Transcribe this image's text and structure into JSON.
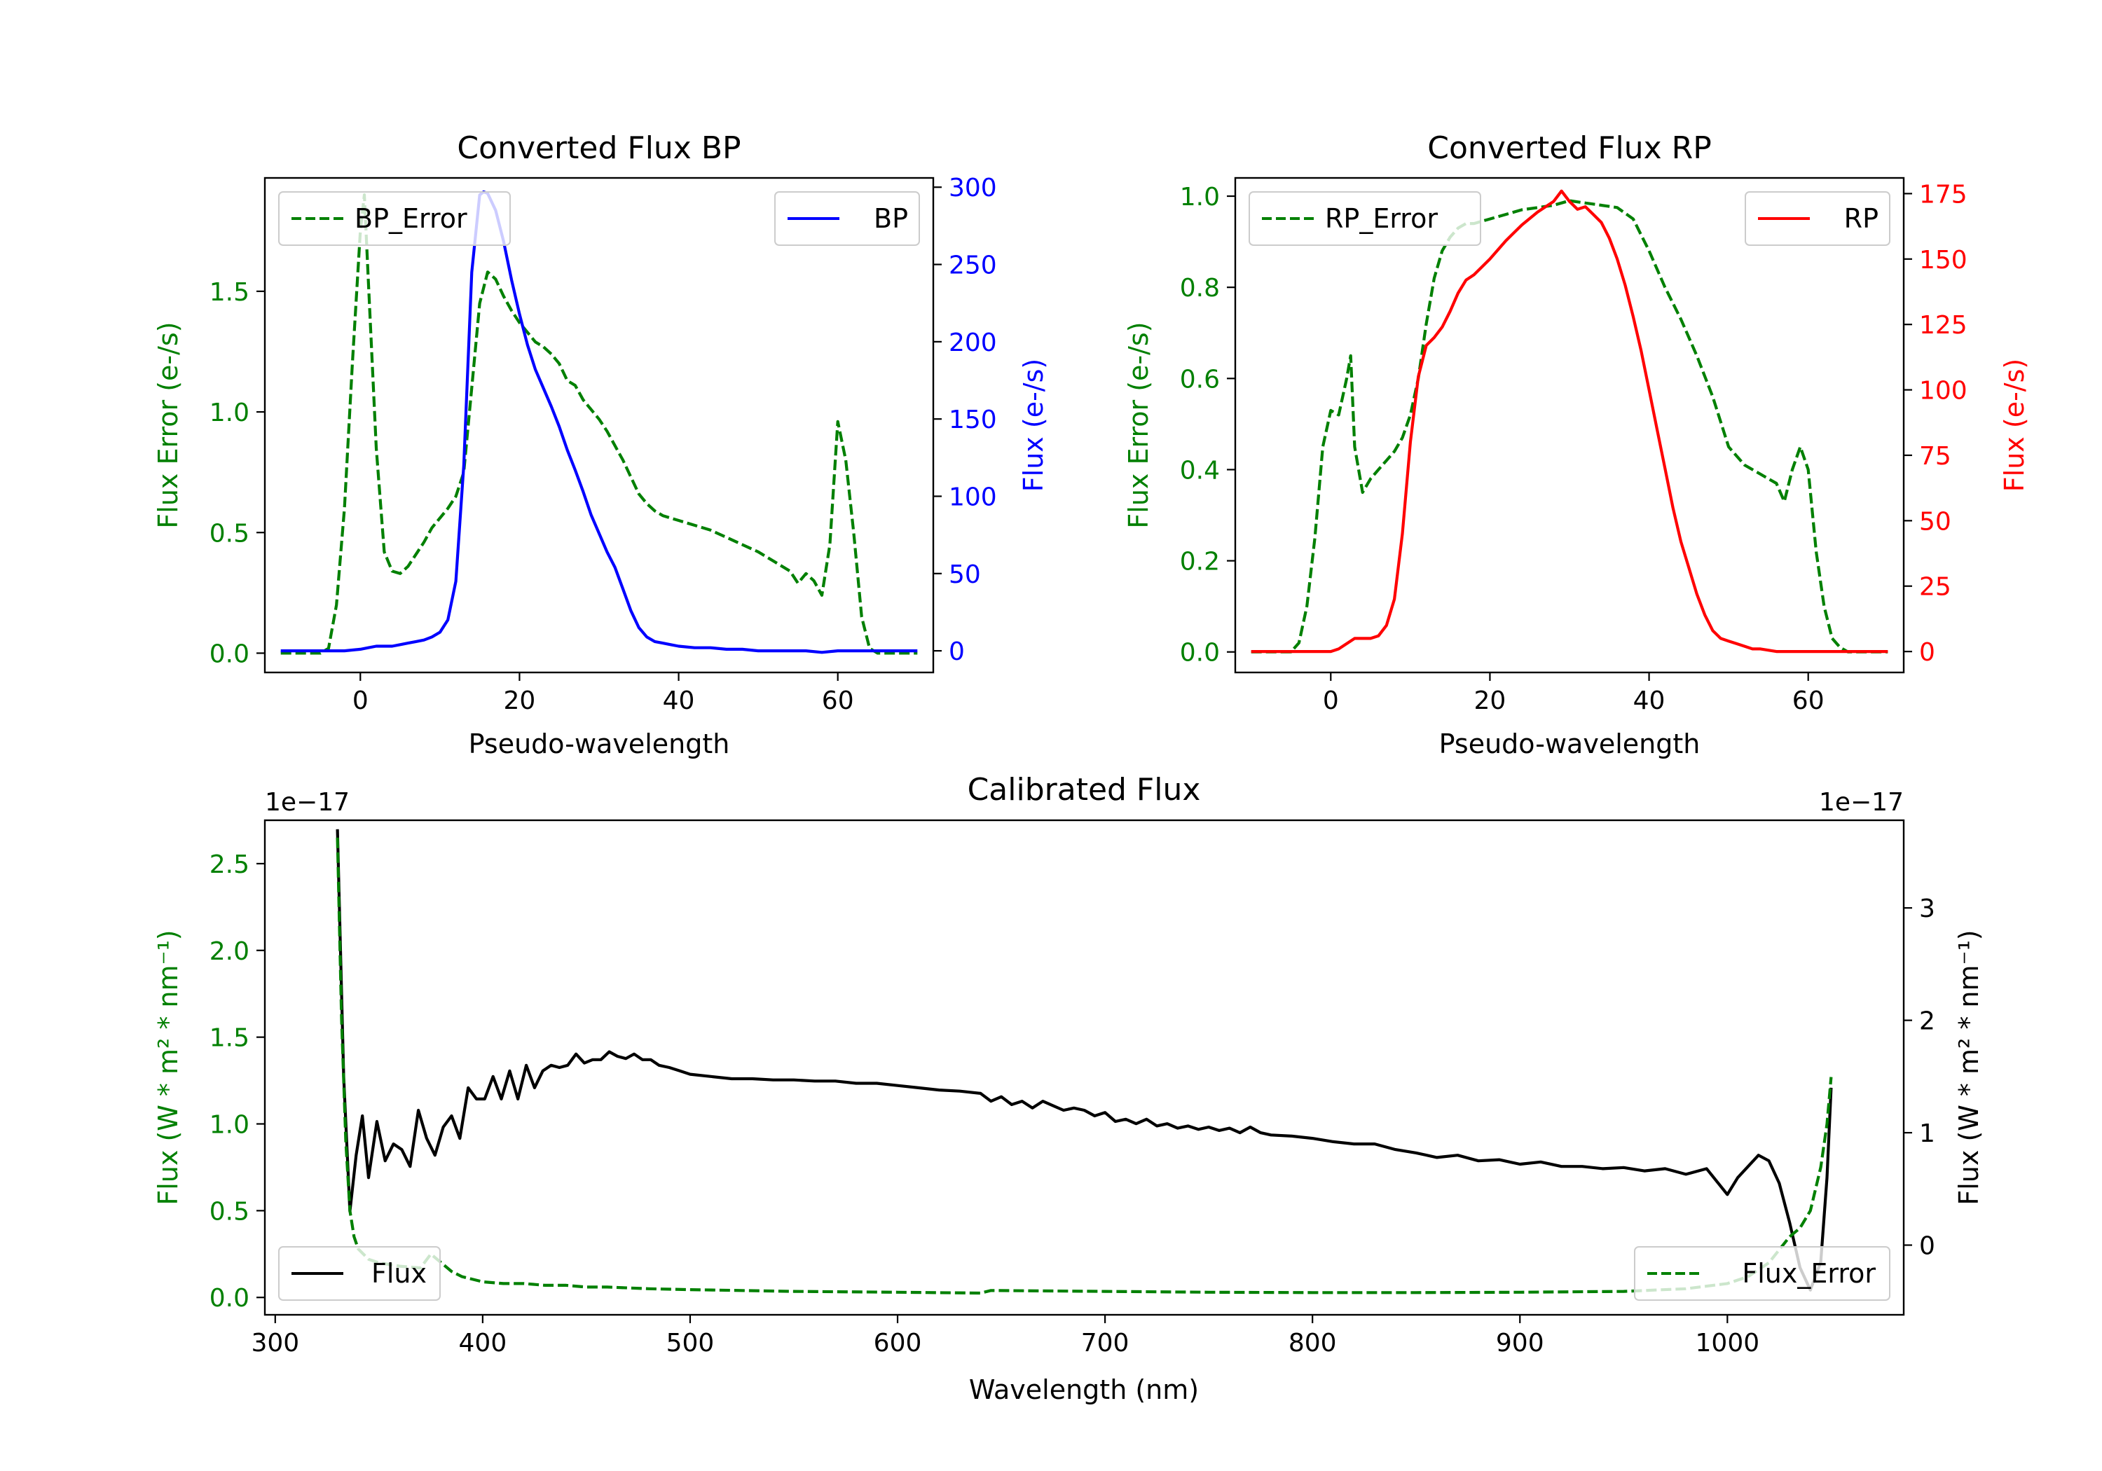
{
  "chart_data": [
    {
      "id": "bp",
      "type": "line",
      "title": "Converted Flux BP",
      "xlabel": "Pseudo-wavelength",
      "xlim": [
        -12,
        72
      ],
      "xticks": [
        0,
        20,
        40,
        60
      ],
      "left_axis": {
        "label": "Flux Error (e-/s)",
        "color": "#008000",
        "ylim": [
          -0.08,
          1.97
        ],
        "ticks": [
          0.0,
          0.5,
          1.0,
          1.5
        ],
        "tick_labels": [
          "0.0",
          "0.5",
          "1.0",
          "1.5"
        ]
      },
      "right_axis": {
        "label": "Flux (e-/s)",
        "color": "#0000ff",
        "ylim": [
          -14,
          306
        ],
        "ticks": [
          0,
          50,
          100,
          150,
          200,
          250,
          300
        ],
        "tick_labels": [
          "0",
          "50",
          "100",
          "150",
          "200",
          "250",
          "300"
        ]
      },
      "series": [
        {
          "name": "BP_Error",
          "axis": "left",
          "color": "#008000",
          "dash": true,
          "legend": "upper left",
          "x": [
            -10,
            -7,
            -5,
            -4,
            -3,
            -2,
            -1,
            0,
            0.5,
            1,
            2,
            3,
            4,
            5,
            6,
            7,
            8,
            9,
            10,
            11,
            12,
            13,
            14,
            15,
            16,
            17,
            18,
            19,
            20,
            21,
            22,
            23,
            24,
            25,
            26,
            27,
            28,
            29,
            30,
            31,
            32,
            33,
            34,
            35,
            36,
            37,
            38,
            39,
            40,
            42,
            44,
            46,
            48,
            50,
            52,
            54,
            55,
            56,
            57,
            58,
            59,
            60,
            61,
            62,
            63,
            64,
            65,
            66,
            67,
            68,
            69,
            70
          ],
          "values": [
            0,
            0,
            0,
            0.02,
            0.2,
            0.6,
            1.2,
            1.75,
            1.9,
            1.55,
            0.85,
            0.42,
            0.34,
            0.33,
            0.36,
            0.41,
            0.46,
            0.52,
            0.56,
            0.6,
            0.65,
            0.75,
            1.1,
            1.45,
            1.58,
            1.55,
            1.48,
            1.42,
            1.37,
            1.33,
            1.29,
            1.27,
            1.24,
            1.2,
            1.13,
            1.11,
            1.05,
            1.01,
            0.97,
            0.92,
            0.86,
            0.8,
            0.73,
            0.66,
            0.62,
            0.59,
            0.57,
            0.56,
            0.55,
            0.53,
            0.51,
            0.48,
            0.45,
            0.42,
            0.38,
            0.34,
            0.29,
            0.33,
            0.3,
            0.24,
            0.45,
            0.96,
            0.8,
            0.5,
            0.15,
            0.02,
            0,
            0,
            0,
            0,
            0,
            0
          ]
        },
        {
          "name": "BP",
          "axis": "right",
          "color": "#0000ff",
          "dash": false,
          "legend": "upper right",
          "x": [
            -10,
            -5,
            -2,
            0,
            1,
            2,
            3,
            4,
            5,
            6,
            7,
            8,
            9,
            10,
            11,
            12,
            13,
            14,
            15,
            15.5,
            16,
            17,
            18,
            19,
            20,
            21,
            22,
            23,
            24,
            25,
            26,
            27,
            28,
            29,
            30,
            31,
            32,
            33,
            34,
            35,
            36,
            37,
            38,
            39,
            40,
            42,
            44,
            46,
            48,
            50,
            52,
            54,
            56,
            58,
            60,
            62,
            64,
            66,
            68,
            70
          ],
          "values": [
            0,
            0,
            0,
            1,
            2,
            3,
            3,
            3,
            4,
            5,
            6,
            7,
            9,
            12,
            20,
            45,
            120,
            245,
            295,
            297,
            296,
            285,
            265,
            240,
            218,
            198,
            182,
            170,
            158,
            145,
            130,
            117,
            103,
            88,
            76,
            64,
            54,
            40,
            26,
            15,
            9,
            6,
            5,
            4,
            3,
            2,
            2,
            1,
            1,
            0,
            0,
            0,
            0,
            -1,
            0,
            0,
            0,
            0,
            0,
            0
          ]
        }
      ]
    },
    {
      "id": "rp",
      "type": "line",
      "title": "Converted Flux RP",
      "xlabel": "Pseudo-wavelength",
      "xlim": [
        -12,
        72
      ],
      "xticks": [
        0,
        20,
        40,
        60
      ],
      "left_axis": {
        "label": "Flux Error (e-/s)",
        "color": "#008000",
        "ylim": [
          -0.045,
          1.04
        ],
        "ticks": [
          0.0,
          0.2,
          0.4,
          0.6,
          0.8,
          1.0
        ],
        "tick_labels": [
          "0.0",
          "0.2",
          "0.4",
          "0.6",
          "0.8",
          "1.0"
        ]
      },
      "right_axis": {
        "label": "Flux (e-/s)",
        "color": "#ff0000",
        "ylim": [
          -8,
          181
        ],
        "ticks": [
          0,
          25,
          50,
          75,
          100,
          125,
          150,
          175
        ],
        "tick_labels": [
          "0",
          "25",
          "50",
          "75",
          "100",
          "125",
          "150",
          "175"
        ]
      },
      "series": [
        {
          "name": "RP_Error",
          "axis": "left",
          "color": "#008000",
          "dash": true,
          "legend": "upper left",
          "x": [
            -10,
            -5,
            -4,
            -3,
            -2,
            -1,
            0,
            1,
            2,
            2.5,
            3,
            4,
            5,
            6,
            7,
            8,
            9,
            10,
            11,
            12,
            13,
            14,
            15,
            16,
            17,
            18,
            20,
            22,
            24,
            26,
            28,
            30,
            32,
            34,
            36,
            38,
            40,
            42,
            44,
            46,
            48,
            50,
            52,
            54,
            55,
            56,
            57,
            58,
            59,
            60,
            61,
            62,
            63,
            64,
            65,
            70
          ],
          "values": [
            0,
            0,
            0.02,
            0.1,
            0.25,
            0.45,
            0.53,
            0.52,
            0.6,
            0.65,
            0.45,
            0.35,
            0.38,
            0.4,
            0.42,
            0.44,
            0.47,
            0.52,
            0.6,
            0.72,
            0.82,
            0.88,
            0.91,
            0.93,
            0.94,
            0.94,
            0.95,
            0.96,
            0.97,
            0.975,
            0.98,
            0.99,
            0.985,
            0.98,
            0.975,
            0.95,
            0.88,
            0.8,
            0.73,
            0.65,
            0.56,
            0.45,
            0.41,
            0.39,
            0.38,
            0.37,
            0.33,
            0.4,
            0.45,
            0.4,
            0.22,
            0.1,
            0.03,
            0.01,
            0,
            0
          ]
        },
        {
          "name": "RP",
          "axis": "right",
          "color": "#ff0000",
          "dash": false,
          "legend": "upper right",
          "x": [
            -10,
            -5,
            -1,
            0,
            1,
            2,
            3,
            4,
            5,
            6,
            7,
            8,
            9,
            10,
            11,
            12,
            13,
            14,
            15,
            16,
            17,
            18,
            20,
            22,
            24,
            26,
            28,
            29,
            30,
            31,
            32,
            33,
            34,
            35,
            36,
            37,
            38,
            39,
            40,
            41,
            42,
            43,
            44,
            45,
            46,
            47,
            48,
            49,
            50,
            51,
            52,
            53,
            54,
            56,
            58,
            60,
            62,
            65,
            70
          ],
          "values": [
            0,
            0,
            0,
            0,
            1,
            3,
            5,
            5,
            5,
            6,
            10,
            20,
            45,
            80,
            105,
            117,
            120,
            124,
            130,
            137,
            142,
            144,
            150,
            157,
            163,
            168,
            172,
            176,
            172,
            169,
            170,
            167,
            164,
            158,
            150,
            140,
            128,
            115,
            100,
            85,
            70,
            55,
            42,
            32,
            22,
            14,
            8,
            5,
            4,
            3,
            2,
            1,
            1,
            0,
            0,
            0,
            0,
            0,
            0
          ]
        }
      ]
    },
    {
      "id": "cal",
      "type": "line",
      "title": "Calibrated Flux",
      "xlabel": "Wavelength (nm)",
      "xlim": [
        295,
        1085
      ],
      "xticks": [
        300,
        400,
        500,
        600,
        700,
        800,
        900,
        1000
      ],
      "left_axis": {
        "label": "Flux (W * m² * nm⁻¹)",
        "color": "#008000",
        "ylim": [
          -0.1,
          2.75
        ],
        "ticks": [
          0.0,
          0.5,
          1.0,
          1.5,
          2.0,
          2.5
        ],
        "tick_labels": [
          "0.0",
          "0.5",
          "1.0",
          "1.5",
          "2.0",
          "2.5"
        ],
        "offset_text": "1e−17"
      },
      "right_axis": {
        "label": "Flux (W * m² * nm⁻¹)",
        "color": "#000000",
        "ylim": [
          -0.62,
          3.78
        ],
        "ticks": [
          0,
          1,
          2,
          3
        ],
        "tick_labels": [
          "0",
          "1",
          "2",
          "3"
        ],
        "offset_text": "1e−17"
      },
      "series": [
        {
          "name": "Flux",
          "axis": "right",
          "color": "#000000",
          "dash": false,
          "legend": "lower left",
          "x": [
            330,
            333,
            336,
            339,
            342,
            345,
            349,
            353,
            357,
            361,
            365,
            369,
            373,
            377,
            381,
            385,
            389,
            393,
            397,
            401,
            405,
            409,
            413,
            417,
            421,
            425,
            429,
            433,
            437,
            441,
            445,
            449,
            453,
            457,
            461,
            465,
            469,
            473,
            477,
            481,
            485,
            490,
            495,
            500,
            510,
            520,
            530,
            540,
            550,
            560,
            570,
            580,
            590,
            600,
            610,
            620,
            630,
            640,
            645,
            650,
            655,
            660,
            665,
            670,
            675,
            680,
            685,
            690,
            695,
            700,
            705,
            710,
            715,
            720,
            725,
            730,
            735,
            740,
            745,
            750,
            755,
            760,
            765,
            770,
            775,
            780,
            790,
            800,
            810,
            820,
            830,
            840,
            850,
            860,
            870,
            880,
            890,
            900,
            910,
            920,
            930,
            940,
            950,
            960,
            970,
            980,
            990,
            1000,
            1005,
            1010,
            1015,
            1020,
            1025,
            1030,
            1035,
            1040,
            1045,
            1048,
            1050
          ],
          "values": [
            3.7,
            1.5,
            0.3,
            0.8,
            1.15,
            0.6,
            1.1,
            0.75,
            0.9,
            0.85,
            0.7,
            1.2,
            0.95,
            0.8,
            1.05,
            1.15,
            0.95,
            1.4,
            1.3,
            1.3,
            1.5,
            1.3,
            1.55,
            1.3,
            1.6,
            1.4,
            1.55,
            1.6,
            1.58,
            1.6,
            1.7,
            1.62,
            1.65,
            1.65,
            1.72,
            1.68,
            1.66,
            1.7,
            1.65,
            1.65,
            1.6,
            1.58,
            1.55,
            1.52,
            1.5,
            1.48,
            1.48,
            1.47,
            1.47,
            1.46,
            1.46,
            1.44,
            1.44,
            1.42,
            1.4,
            1.38,
            1.37,
            1.35,
            1.28,
            1.32,
            1.25,
            1.28,
            1.22,
            1.28,
            1.24,
            1.2,
            1.22,
            1.2,
            1.15,
            1.18,
            1.1,
            1.12,
            1.08,
            1.12,
            1.06,
            1.08,
            1.04,
            1.06,
            1.03,
            1.05,
            1.02,
            1.04,
            1.0,
            1.05,
            1.0,
            0.98,
            0.97,
            0.95,
            0.92,
            0.9,
            0.9,
            0.85,
            0.82,
            0.78,
            0.8,
            0.75,
            0.76,
            0.72,
            0.74,
            0.7,
            0.7,
            0.68,
            0.69,
            0.66,
            0.68,
            0.63,
            0.68,
            0.45,
            0.6,
            0.7,
            0.8,
            0.75,
            0.55,
            0.2,
            -0.2,
            -0.4,
            -0.15,
            0.6,
            1.4
          ]
        },
        {
          "name": "Flux_Error",
          "axis": "left",
          "color": "#008000",
          "dash": true,
          "legend": "lower right",
          "x": [
            330,
            332,
            334,
            336,
            338,
            340,
            345,
            350,
            360,
            370,
            375,
            380,
            385,
            390,
            400,
            410,
            420,
            430,
            440,
            450,
            460,
            470,
            480,
            500,
            550,
            600,
            640,
            645,
            700,
            750,
            800,
            850,
            900,
            950,
            980,
            1000,
            1010,
            1020,
            1030,
            1035,
            1040,
            1045,
            1048,
            1050
          ],
          "values": [
            2.65,
            1.6,
            0.9,
            0.5,
            0.35,
            0.28,
            0.22,
            0.2,
            0.18,
            0.17,
            0.25,
            0.2,
            0.15,
            0.12,
            0.09,
            0.08,
            0.08,
            0.07,
            0.07,
            0.06,
            0.06,
            0.055,
            0.05,
            0.045,
            0.035,
            0.03,
            0.025,
            0.04,
            0.035,
            0.03,
            0.028,
            0.028,
            0.03,
            0.035,
            0.05,
            0.08,
            0.12,
            0.2,
            0.35,
            0.4,
            0.5,
            0.75,
            1.0,
            1.27
          ]
        }
      ]
    }
  ]
}
